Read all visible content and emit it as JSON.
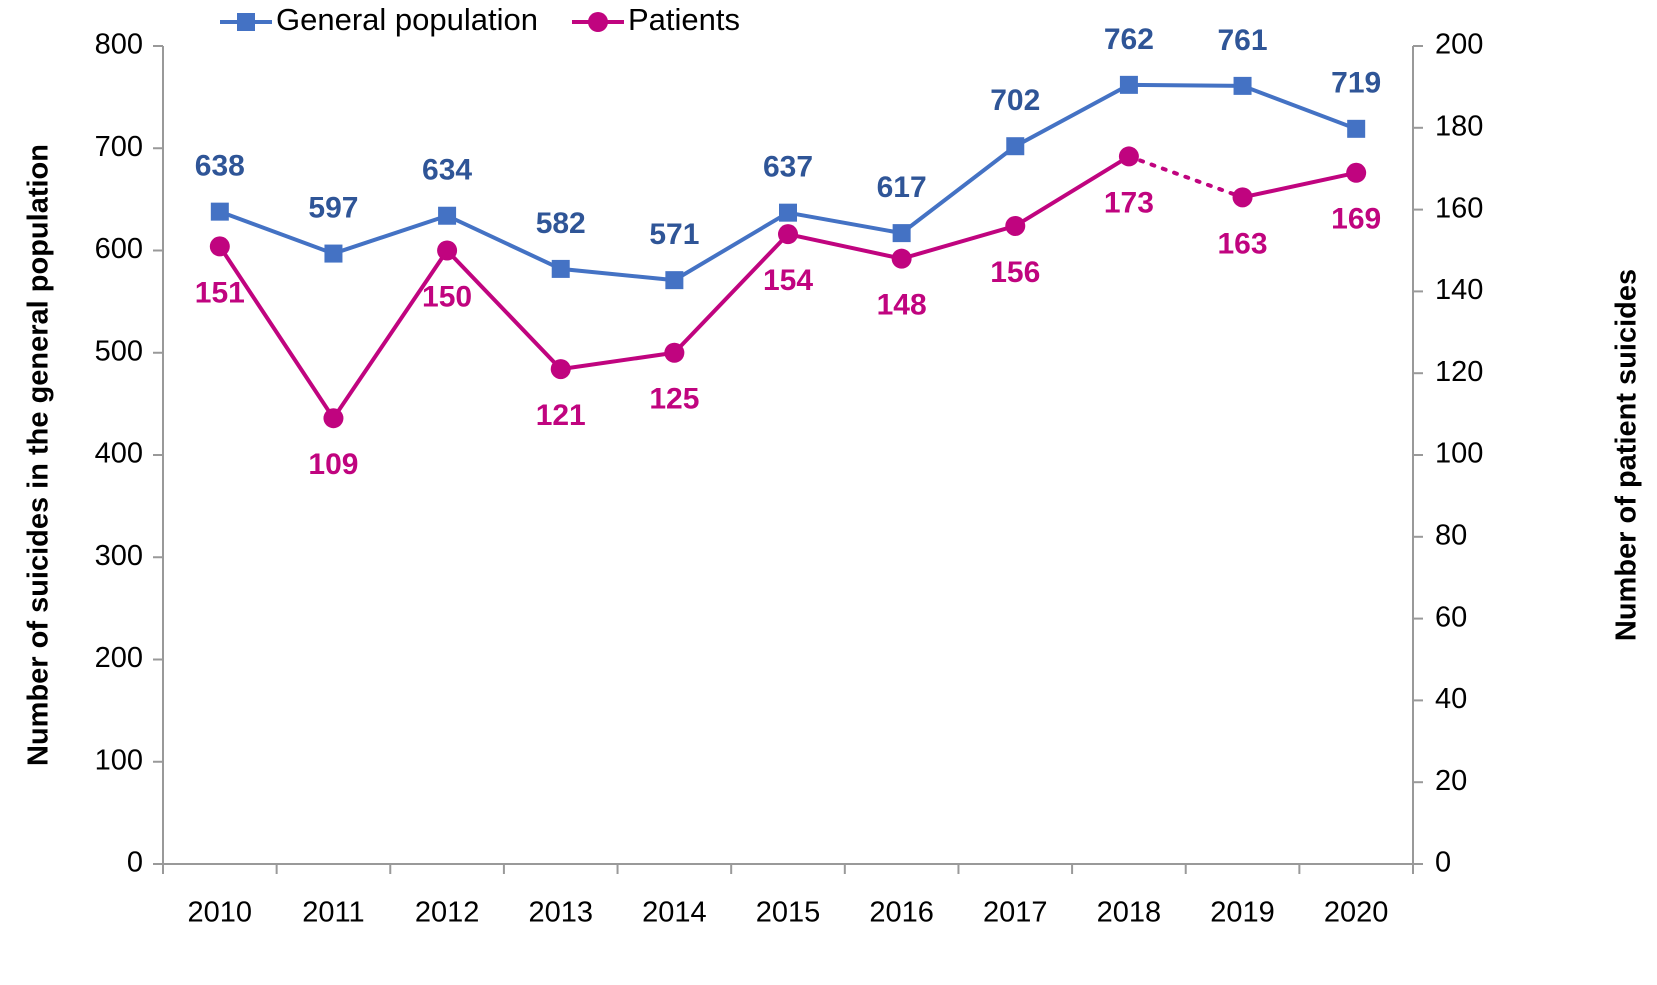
{
  "chart_data": {
    "type": "line",
    "categories": [
      "2010",
      "2011",
      "2012",
      "2013",
      "2014",
      "2015",
      "2016",
      "2017",
      "2018",
      "2019",
      "2020"
    ],
    "y_label": "Number of suicides in the general population",
    "y2_label": "Number of patient suicides",
    "ylim": [
      0,
      800
    ],
    "yticks": [
      0,
      100,
      200,
      300,
      400,
      500,
      600,
      700,
      800
    ],
    "y2lim": [
      0,
      200
    ],
    "y2ticks": [
      0,
      20,
      40,
      60,
      80,
      100,
      120,
      140,
      160,
      180,
      200
    ],
    "legend": "top",
    "series": [
      {
        "name": "General population",
        "color": "#4472c4",
        "label_color": "#2f5597",
        "marker": "square",
        "values": [
          638,
          597,
          634,
          582,
          571,
          637,
          617,
          702,
          762,
          761,
          719
        ]
      },
      {
        "name": "Patients",
        "color": "#c0047f",
        "label_color": "#c0047f",
        "marker": "circle",
        "axis": "y2",
        "dotted_segments": [
          8
        ],
        "values": [
          151,
          109,
          150,
          121,
          125,
          154,
          148,
          156,
          173,
          163,
          169
        ]
      }
    ]
  }
}
